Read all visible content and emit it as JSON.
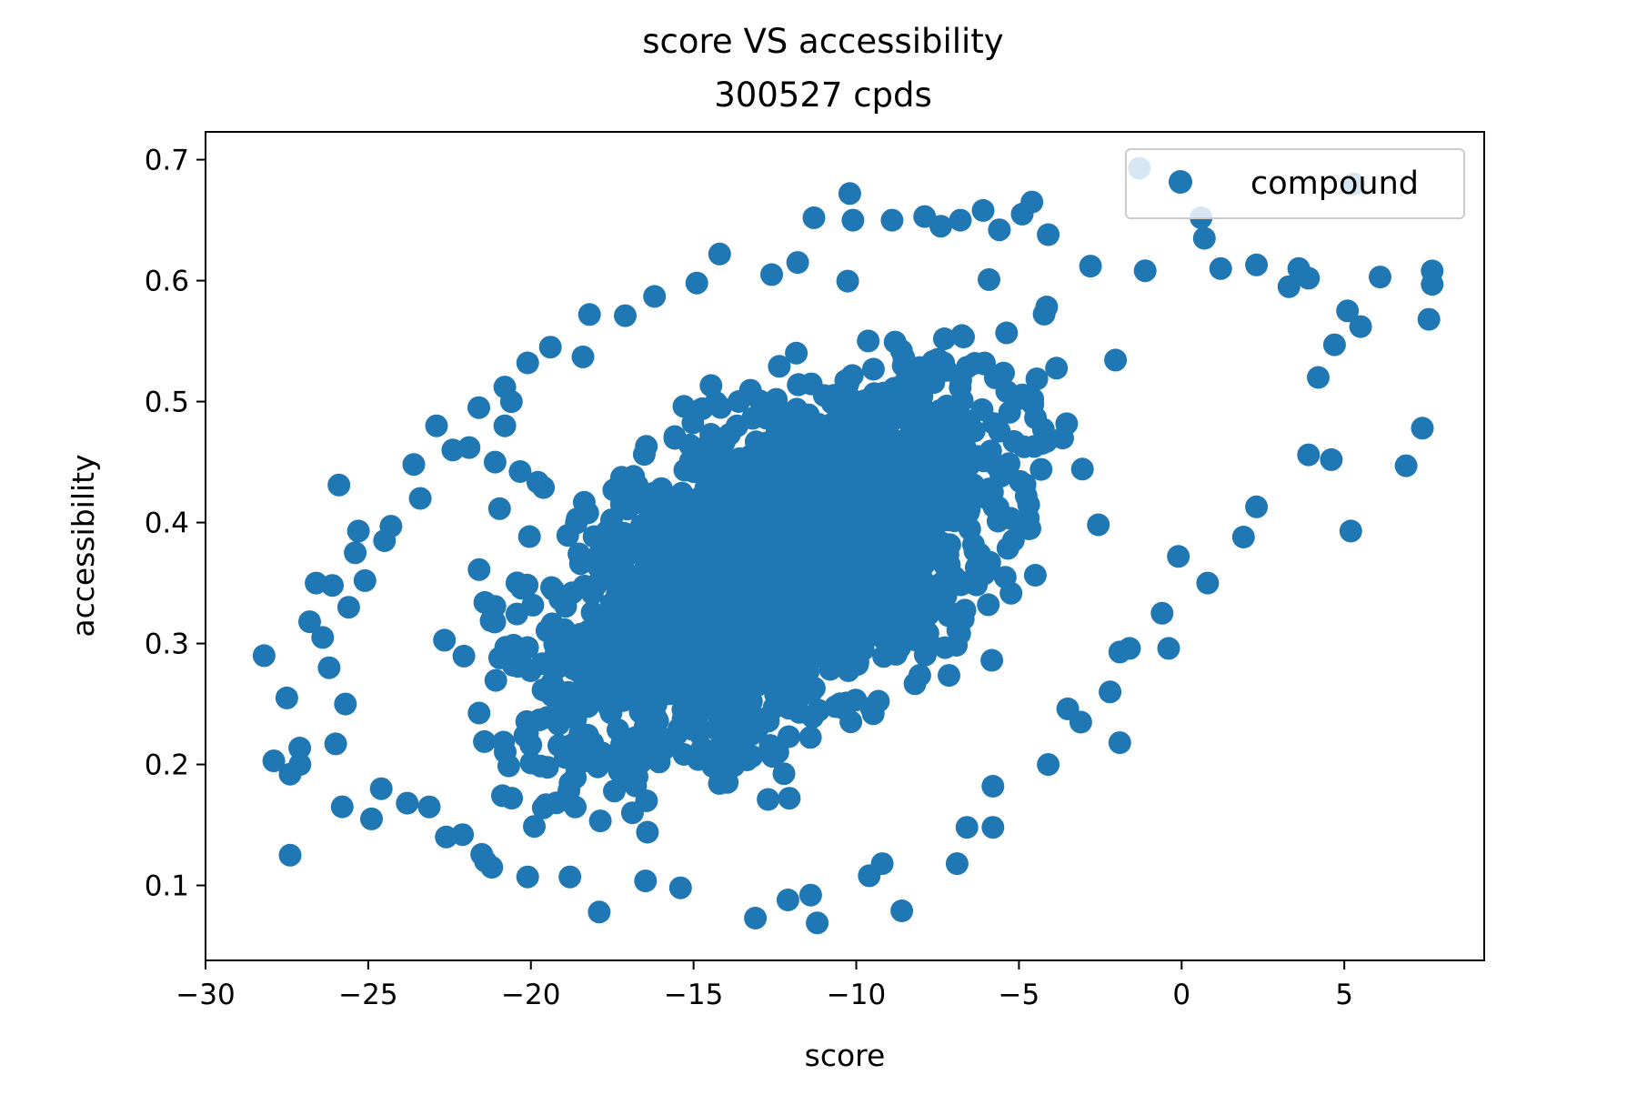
{
  "chart_data": {
    "type": "scatter",
    "title": "score VS accessibility",
    "subtitle": "300527 cpds",
    "xlabel": "score",
    "ylabel": "accessibility",
    "xlim": [
      -30,
      9.3
    ],
    "ylim": [
      0.038,
      0.723
    ],
    "x_ticks": [
      -30,
      -25,
      -20,
      -15,
      -10,
      -5,
      0,
      5
    ],
    "y_ticks": [
      0.1,
      0.2,
      0.3,
      0.4,
      0.5,
      0.6,
      0.7
    ],
    "x_tick_labels": [
      "−30",
      "−25",
      "−20",
      "−15",
      "−10",
      "−5",
      "0",
      "5"
    ],
    "y_tick_labels": [
      "0.1",
      "0.2",
      "0.3",
      "0.4",
      "0.5",
      "0.6",
      "0.7"
    ],
    "grid": false,
    "legend_position": "top-right",
    "series": [
      {
        "name": "compound",
        "color": "#1f77b4",
        "marker": "circle",
        "point_count": 300527,
        "distribution": {
          "correlation": 0.53,
          "x_mean": -12.6,
          "x_sd": 3.3,
          "y_mean": 0.36,
          "y_sd": 0.072
        },
        "outliers": [
          [
            -28.2,
            0.29
          ],
          [
            -27.9,
            0.203
          ],
          [
            -27.5,
            0.255
          ],
          [
            -27.4,
            0.192
          ],
          [
            -27.4,
            0.125
          ],
          [
            -27.1,
            0.2
          ],
          [
            -26.8,
            0.318
          ],
          [
            -26.6,
            0.35
          ],
          [
            -26.4,
            0.305
          ],
          [
            -26.2,
            0.28
          ],
          [
            -26.1,
            0.348
          ],
          [
            -26.0,
            0.217
          ],
          [
            -25.9,
            0.431
          ],
          [
            -25.8,
            0.165
          ],
          [
            -25.7,
            0.25
          ],
          [
            -25.6,
            0.33
          ],
          [
            -25.4,
            0.375
          ],
          [
            -25.3,
            0.393
          ],
          [
            -25.1,
            0.352
          ],
          [
            -24.9,
            0.155
          ],
          [
            -24.6,
            0.18
          ],
          [
            -24.5,
            0.385
          ],
          [
            -24.3,
            0.397
          ],
          [
            -23.8,
            0.168
          ],
          [
            -23.6,
            0.448
          ],
          [
            -23.4,
            0.42
          ],
          [
            -22.9,
            0.48
          ],
          [
            -22.6,
            0.14
          ],
          [
            -22.4,
            0.46
          ],
          [
            -22.1,
            0.142
          ],
          [
            -21.9,
            0.462
          ],
          [
            -21.6,
            0.495
          ],
          [
            -21.4,
            0.12
          ],
          [
            -21.2,
            0.115
          ],
          [
            -21.1,
            0.45
          ],
          [
            -20.8,
            0.48
          ],
          [
            -20.8,
            0.512
          ],
          [
            -20.6,
            0.5
          ],
          [
            -20.1,
            0.107
          ],
          [
            -20.1,
            0.532
          ],
          [
            -19.4,
            0.545
          ],
          [
            -18.8,
            0.107
          ],
          [
            -18.4,
            0.537
          ],
          [
            -18.2,
            0.572
          ],
          [
            -17.9,
            0.078
          ],
          [
            -17.1,
            0.571
          ],
          [
            -16.2,
            0.587
          ],
          [
            -15.4,
            0.098
          ],
          [
            -14.9,
            0.598
          ],
          [
            -14.2,
            0.622
          ],
          [
            -13.1,
            0.073
          ],
          [
            -12.6,
            0.605
          ],
          [
            -12.1,
            0.088
          ],
          [
            -11.8,
            0.615
          ],
          [
            -11.4,
            0.092
          ],
          [
            -11.3,
            0.652
          ],
          [
            -11.2,
            0.069
          ],
          [
            -10.2,
            0.672
          ],
          [
            -10.1,
            0.65
          ],
          [
            -9.6,
            0.108
          ],
          [
            -9.2,
            0.118
          ],
          [
            -8.9,
            0.65
          ],
          [
            -8.6,
            0.079
          ],
          [
            -7.9,
            0.653
          ],
          [
            -7.4,
            0.645
          ],
          [
            -6.9,
            0.118
          ],
          [
            -6.8,
            0.65
          ],
          [
            -6.6,
            0.148
          ],
          [
            -6.1,
            0.658
          ],
          [
            -5.8,
            0.148
          ],
          [
            -5.8,
            0.182
          ],
          [
            -5.6,
            0.642
          ],
          [
            -4.9,
            0.655
          ],
          [
            -4.6,
            0.665
          ],
          [
            -4.1,
            0.2
          ],
          [
            -4.1,
            0.638
          ],
          [
            -3.5,
            0.246
          ],
          [
            -3.1,
            0.235
          ],
          [
            -2.8,
            0.612
          ],
          [
            -2.2,
            0.26
          ],
          [
            -1.9,
            0.218
          ],
          [
            -1.9,
            0.293
          ],
          [
            -1.6,
            0.296
          ],
          [
            -1.3,
            0.693
          ],
          [
            -0.6,
            0.325
          ],
          [
            -0.4,
            0.296
          ],
          [
            -0.1,
            0.372
          ],
          [
            0.6,
            0.652
          ],
          [
            0.7,
            0.635
          ],
          [
            0.8,
            0.35
          ],
          [
            1.2,
            0.61
          ],
          [
            1.9,
            0.388
          ],
          [
            2.3,
            0.613
          ],
          [
            2.3,
            0.413
          ],
          [
            3.3,
            0.595
          ],
          [
            3.6,
            0.61
          ],
          [
            3.9,
            0.602
          ],
          [
            3.9,
            0.456
          ],
          [
            4.2,
            0.52
          ],
          [
            4.6,
            0.452
          ],
          [
            4.7,
            0.547
          ],
          [
            5.1,
            0.575
          ],
          [
            5.2,
            0.393
          ],
          [
            5.3,
            0.68
          ],
          [
            5.5,
            0.562
          ],
          [
            6.1,
            0.603
          ],
          [
            6.9,
            0.447
          ],
          [
            7.4,
            0.478
          ],
          [
            7.6,
            0.568
          ],
          [
            7.7,
            0.597
          ],
          [
            7.7,
            0.608
          ]
        ]
      }
    ]
  }
}
